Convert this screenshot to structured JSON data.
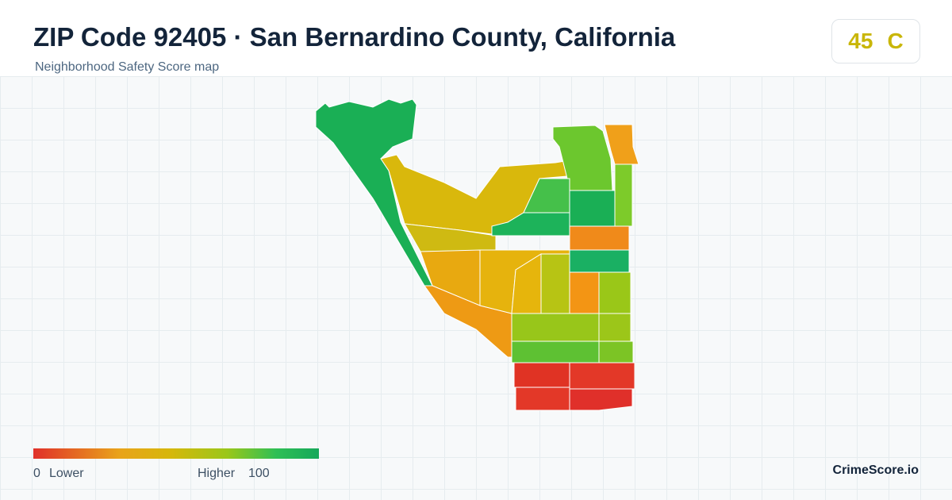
{
  "header": {
    "title": "ZIP Code 92405 · San Bernardino County, California",
    "subtitle": "Neighborhood Safety Score map"
  },
  "score": {
    "value": "45",
    "grade": "C"
  },
  "legend": {
    "min": "0",
    "low_label": "Lower",
    "high_label": "Higher",
    "max": "100"
  },
  "brand": "CrimeScore.io"
}
